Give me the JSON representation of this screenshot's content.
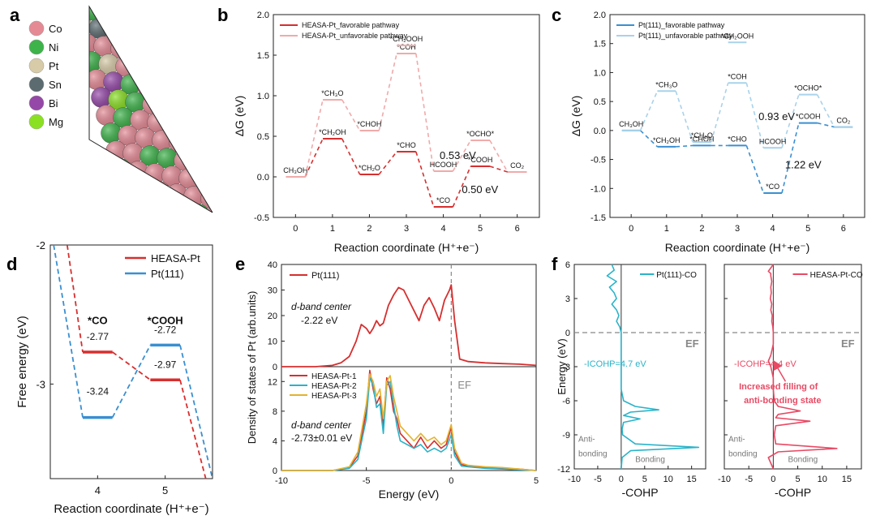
{
  "panel_letters": {
    "a": "a",
    "b": "b",
    "c": "c",
    "d": "d",
    "e": "e",
    "f": "f"
  },
  "colors": {
    "red": "#d62f2f",
    "pink": "#f0aaaa",
    "blue": "#3a8fd1",
    "lightblue": "#a9d2ea",
    "cyan": "#2ab3c9",
    "orange": "#e3b330",
    "coral": "#e84a64",
    "Co": "#e58a95",
    "Ni": "#3db34a",
    "Pt": "#d8cba8",
    "Sn": "#5b6b70",
    "Bi": "#9548a8",
    "Mg": "#8be024"
  },
  "panel_a": {
    "legend": [
      {
        "symbol": "Co",
        "color": "#e58a95"
      },
      {
        "symbol": "Ni",
        "color": "#3db34a"
      },
      {
        "symbol": "Pt",
        "color": "#d8cba8"
      },
      {
        "symbol": "Sn",
        "color": "#5b6b70"
      },
      {
        "symbol": "Bi",
        "color": "#9548a8"
      },
      {
        "symbol": "Mg",
        "color": "#8be024"
      }
    ]
  },
  "chart_data": [
    {
      "panel": "b",
      "type": "line",
      "ylabel": "ΔG (eV)",
      "xlabel": "Reaction coordinate (H⁺+e⁻)",
      "xlim": [
        -0.6,
        6.6
      ],
      "ylim": [
        -0.5,
        2.0
      ],
      "xticks": [
        0,
        1,
        2,
        3,
        4,
        5,
        6
      ],
      "yticks": [
        -0.5,
        0.0,
        0.5,
        1.0,
        1.5,
        2.0
      ],
      "ytick_labels": [
        "-0.5",
        "0.0",
        "0.5",
        "1.0",
        "1.5",
        "2.0"
      ],
      "legend": [
        "HEASA-Pt_favorable pathway",
        "HEASA-Pt_unfavorable pathway"
      ],
      "series": [
        {
          "name": "HEASA-Pt_favorable pathway",
          "color": "#d62f2f",
          "x": [
            0,
            1,
            2,
            3,
            4,
            5,
            6
          ],
          "y": [
            0.0,
            0.47,
            0.03,
            0.31,
            -0.37,
            0.13,
            0.06
          ],
          "labels": [
            "CH₃OH",
            "*CH₂OH",
            "*CH₂O",
            "*CHO",
            "*CO",
            "*COOH",
            "CO₂"
          ]
        },
        {
          "name": "HEASA-Pt_unfavorable pathway",
          "color": "#f0aaaa",
          "x": [
            0,
            1,
            2,
            3,
            4,
            5,
            6
          ],
          "y": [
            0.0,
            0.95,
            0.57,
            1.52,
            0.07,
            0.45,
            0.06
          ],
          "labels": [
            "",
            "*CH₃O",
            "*CHOH",
            "*COH",
            "HCOOH",
            "*OCHO*",
            ""
          ]
        },
        {
          "name": "",
          "color": "#f0aaaa",
          "x": [
            3
          ],
          "y": [
            1.62
          ],
          "labels": [
            "*CH₂OOH"
          ]
        }
      ],
      "annotations": [
        "0.53 eV",
        "0.50 eV"
      ]
    },
    {
      "panel": "c",
      "type": "line",
      "ylabel": "ΔG (eV)",
      "xlabel": "Reaction coordinate (H⁺+e⁻)",
      "xlim": [
        -0.6,
        6.6
      ],
      "ylim": [
        -1.5,
        2.0
      ],
      "xticks": [
        0,
        1,
        2,
        3,
        4,
        5,
        6
      ],
      "yticks": [
        -1.5,
        -1.0,
        -0.5,
        0.0,
        0.5,
        1.0,
        1.5,
        2.0
      ],
      "ytick_labels": [
        "-1.5",
        "-1.0",
        "-0.5",
        "0.0",
        "0.5",
        "1.0",
        "1.5",
        "2.0"
      ],
      "legend": [
        "Pt(111)_favorable pathway",
        "Pt(111)_unfavorable pathway"
      ],
      "series": [
        {
          "name": "Pt(111)_favorable pathway",
          "color": "#3a8fd1",
          "x": [
            0,
            1,
            2,
            3,
            4,
            5,
            6
          ],
          "y": [
            0.0,
            -0.28,
            -0.26,
            -0.26,
            -1.08,
            0.13,
            0.06
          ],
          "labels": [
            "CH₃OH",
            "*CH₂OH",
            "*CHOH",
            "*CHO",
            "*CO",
            "*COOH",
            "CO₂"
          ]
        },
        {
          "name": "Pt(111)_unfavorable pathway",
          "color": "#a9d2ea",
          "x": [
            0,
            1,
            2,
            3,
            4,
            5,
            6
          ],
          "y": [
            0.0,
            0.68,
            -0.2,
            0.82,
            -0.3,
            0.62,
            0.06
          ],
          "labels": [
            "",
            "*CH₃O",
            "*CH₂O",
            "*COH",
            "HCOOH",
            "*OCHO*",
            ""
          ]
        },
        {
          "name": "",
          "color": "#a9d2ea",
          "x": [
            3
          ],
          "y": [
            1.52
          ],
          "labels": [
            "*CH₂OOH"
          ]
        }
      ],
      "annotations": [
        "0.93 eV",
        "1.22 eV"
      ]
    },
    {
      "panel": "d",
      "type": "line",
      "ylabel": "Free energy (eV)",
      "xlabel": "Reaction coordinate (H⁺+e⁻)",
      "xlim": [
        3.3,
        5.7
      ],
      "ylim": [
        -3.68,
        -2.0
      ],
      "xticks": [
        4,
        5
      ],
      "yticks": [
        -3,
        -2
      ],
      "ytick_labels": [
        "-3",
        "-2"
      ],
      "legend": [
        "HEASA-Pt",
        "Pt(111)"
      ],
      "step_labels": [
        "*CO",
        "*COOH"
      ],
      "series": [
        {
          "name": "HEASA-Pt",
          "color": "#d62f2f",
          "x": [
            4,
            5
          ],
          "y": [
            -2.77,
            -2.97
          ]
        },
        {
          "name": "Pt(111)",
          "color": "#3a8fd1",
          "x": [
            4,
            5
          ],
          "y": [
            -3.24,
            -2.72
          ]
        }
      ],
      "value_labels": [
        "-2.77",
        "-3.24",
        "-2.72",
        "-2.97"
      ]
    },
    {
      "panel": "e",
      "type": "line",
      "ylabel": "Density of states of Pt (arb.units)",
      "xlabel": "Energy (eV)",
      "xlim": [
        -10,
        5
      ],
      "xticks": [
        -10,
        -5,
        0,
        5
      ],
      "top": {
        "ylim": [
          0,
          40
        ],
        "yticks": [
          0,
          10,
          20,
          30,
          40
        ],
        "legend": [
          "Pt(111)"
        ],
        "annotation_1": "d-band center",
        "annotation_2": "-2.22 eV",
        "series": [
          {
            "name": "Pt(111)",
            "color": "#d62f2f",
            "x": [
              -10,
              -8,
              -7,
              -6.5,
              -6,
              -5.6,
              -5.3,
              -5.0,
              -4.8,
              -4.6,
              -4.4,
              -4.2,
              -4.0,
              -3.7,
              -3.4,
              -3.1,
              -2.8,
              -2.5,
              -2.2,
              -1.9,
              -1.6,
              -1.3,
              -1.0,
              -0.7,
              -0.4,
              -0.1,
              0.0,
              0.2,
              0.5,
              1,
              2,
              3,
              4,
              5
            ],
            "y": [
              0,
              0,
              0.5,
              1.5,
              4,
              10,
              16.5,
              15,
              13,
              15,
              18,
              16,
              17,
              24,
              28,
              31,
              30,
              26,
              22,
              18,
              24,
              27,
              23,
              18,
              26,
              30,
              32,
              18,
              3,
              2,
              1.5,
              1.2,
              1,
              0.5
            ]
          }
        ]
      },
      "bottom": {
        "ylim": [
          0,
          14
        ],
        "yticks": [
          0,
          4,
          8,
          12
        ],
        "ef_label": "EF",
        "legend": [
          "HEASA-Pt-1",
          "HEASA-Pt-2",
          "HEASA-Pt-3"
        ],
        "annotation_1": "d-band center",
        "annotation_2": "-2.73±0.01 eV",
        "series": [
          {
            "name": "HEASA-Pt-1",
            "color": "#d62f2f",
            "x": [
              -10,
              -7,
              -6,
              -5.5,
              -5.0,
              -4.8,
              -4.6,
              -4.4,
              -4.2,
              -4.0,
              -3.8,
              -3.6,
              -3.4,
              -3.2,
              -3.0,
              -2.6,
              -2.2,
              -1.8,
              -1.4,
              -1.0,
              -0.6,
              -0.3,
              0.0,
              0.2,
              0.6,
              1,
              2,
              3,
              4,
              5
            ],
            "y": [
              0,
              0,
              0.4,
              2,
              8,
              13.5,
              11,
              9,
              10,
              6,
              12.5,
              11,
              8,
              7,
              5,
              4,
              3,
              4.5,
              3,
              4,
              3,
              3.5,
              5.8,
              2.5,
              0.8,
              0.6,
              0.4,
              0.3,
              0.2,
              0
            ]
          },
          {
            "name": "HEASA-Pt-2",
            "color": "#2ab3c9",
            "x": [
              -10,
              -7,
              -6,
              -5.5,
              -5.0,
              -4.8,
              -4.6,
              -4.4,
              -4.2,
              -4.0,
              -3.8,
              -3.6,
              -3.4,
              -3.2,
              -3.0,
              -2.6,
              -2.2,
              -1.8,
              -1.4,
              -1.0,
              -0.6,
              -0.3,
              0.0,
              0.2,
              0.6,
              1,
              2,
              3,
              4,
              5
            ],
            "y": [
              0,
              0,
              0.3,
              1.5,
              7,
              12.5,
              11.5,
              8.5,
              9,
              5,
              11.5,
              12,
              9,
              6,
              4,
              3.5,
              3,
              3.5,
              2.5,
              3,
              2.5,
              3,
              4.8,
              2,
              0.6,
              0.5,
              0.3,
              0.2,
              0.1,
              0
            ]
          },
          {
            "name": "HEASA-Pt-3",
            "color": "#e3b330",
            "x": [
              -10,
              -7,
              -6,
              -5.5,
              -5.0,
              -4.8,
              -4.6,
              -4.4,
              -4.2,
              -4.0,
              -3.8,
              -3.6,
              -3.4,
              -3.2,
              -3.0,
              -2.6,
              -2.2,
              -1.8,
              -1.4,
              -1.0,
              -0.6,
              -0.3,
              0.0,
              0.2,
              0.6,
              1,
              2,
              3,
              4,
              5
            ],
            "y": [
              0,
              0,
              0.5,
              2.5,
              9,
              13,
              12,
              10,
              11,
              7,
              12,
              12.8,
              10,
              8,
              6,
              5,
              4,
              5,
              4,
              4.5,
              3.5,
              4,
              6.2,
              3,
              1,
              0.7,
              0.5,
              0.4,
              0.2,
              0
            ]
          }
        ]
      }
    },
    {
      "panel": "f",
      "type": "line",
      "ylabel": "Energy (eV)",
      "xlabel": "-COHP",
      "ylim": [
        -12,
        6
      ],
      "yticks": [
        -12,
        -9,
        -6,
        -3,
        0,
        3,
        6
      ],
      "ef_label": "EF",
      "left": {
        "xlim": [
          -10,
          18
        ],
        "xticks": [
          -10,
          -5,
          0,
          5,
          10,
          15
        ],
        "legend": [
          "Pt(111)-CO"
        ],
        "color": "#2ab3c9",
        "annotation": "-ICOHP=4.7 eV",
        "anti_label": "Anti-bonding",
        "bonding_label": "Bonding",
        "energy": [
          6,
          5.5,
          5,
          4.5,
          4,
          3.5,
          3,
          2.5,
          2,
          1.5,
          1,
          0.5,
          0,
          -1,
          -2,
          -3,
          -4,
          -5,
          -6,
          -6.5,
          -6.8,
          -7,
          -7.3,
          -7.6,
          -7.9,
          -8.5,
          -9,
          -9.8,
          -10.1,
          -10.4,
          -11,
          -12
        ],
        "cohp": [
          -2,
          -1.5,
          -3,
          -1,
          -2.5,
          -1.5,
          -1,
          -2,
          -1,
          -0.5,
          -1,
          -0.3,
          0,
          0,
          0,
          0,
          0,
          0,
          0.5,
          3,
          8,
          2,
          0.5,
          4,
          0.5,
          0.2,
          0.3,
          3,
          16.5,
          2,
          0.2,
          0
        ]
      },
      "right": {
        "xlim": [
          -10,
          18
        ],
        "xticks": [
          -10,
          -5,
          0,
          5,
          10,
          15
        ],
        "legend": [
          "HEASA-Pt-CO"
        ],
        "color": "#e84a64",
        "annotation": "-ICOHP=4.4 eV",
        "arrow_text_1": "Increased filling of",
        "arrow_text_2": "anti-bonding state",
        "anti_label": "Anti-bonding",
        "bonding_label": "Bonding",
        "energy": [
          6,
          5.4,
          5.2,
          5,
          4.5,
          4,
          3.5,
          3,
          2.5,
          2,
          1.5,
          1,
          0.5,
          0,
          -1,
          -2,
          -2.5,
          -3,
          -4,
          -5,
          -6,
          -6.5,
          -6.9,
          -7.2,
          -7.5,
          -7.8,
          -8.2,
          -9,
          -9.8,
          -10.2,
          -10.5,
          -11,
          -12
        ],
        "cohp": [
          0,
          -1,
          -0.5,
          -0.5,
          -0.3,
          -0.5,
          -0.4,
          -0.6,
          -0.3,
          -0.5,
          -0.2,
          -0.3,
          -0.1,
          0,
          0,
          -0.5,
          -1,
          -0.5,
          0,
          0,
          0.2,
          1,
          5.5,
          1,
          0.5,
          7.5,
          0.5,
          0.2,
          0.5,
          13,
          1,
          -1,
          0
        ]
      }
    }
  ]
}
